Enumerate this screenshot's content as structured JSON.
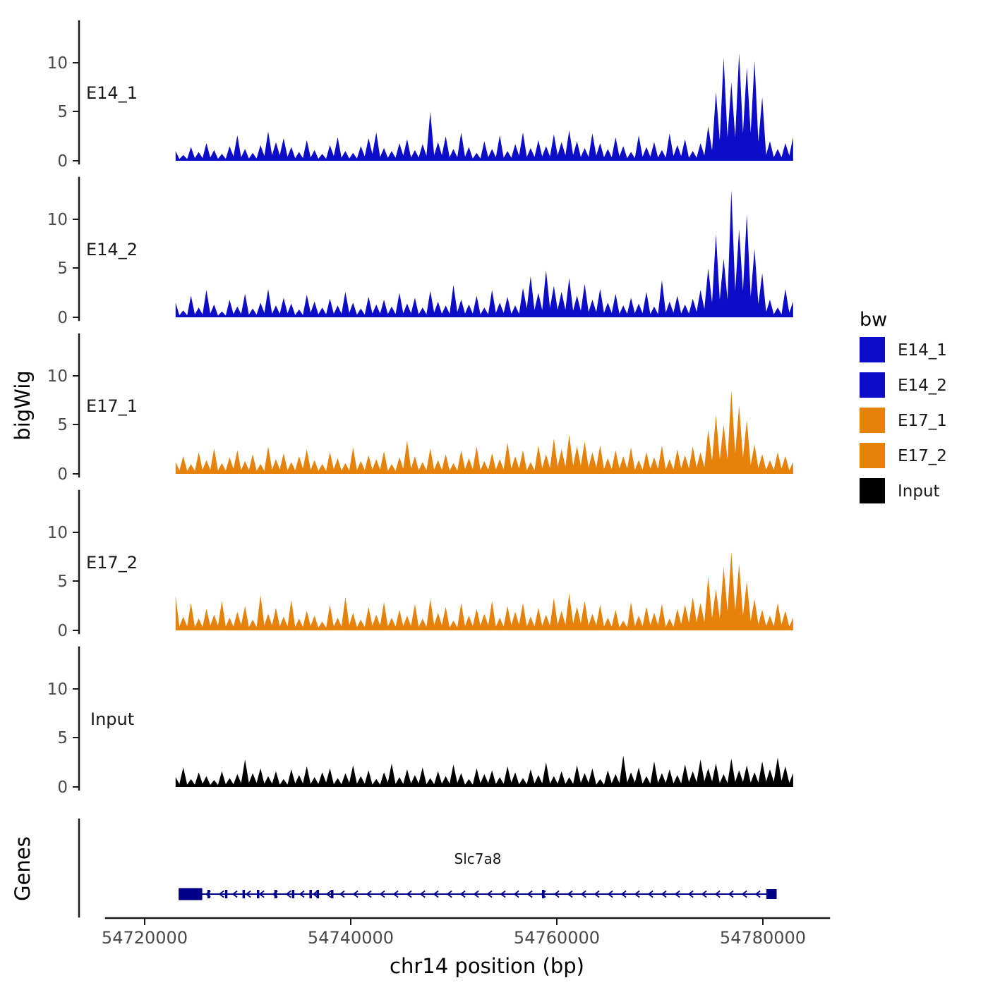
{
  "figure": {
    "y_axis_label": "bigWig",
    "genes_axis_label": "Genes",
    "x_axis_title": "chr14 position (bp)",
    "x_ticks": [
      "54720000",
      "54740000",
      "54760000",
      "54780000"
    ],
    "y_ticks": [
      "0",
      "5",
      "10"
    ]
  },
  "legend": {
    "title": "bw",
    "entries": [
      {
        "label": "E14_1",
        "color": "#0D0DC9"
      },
      {
        "label": "E14_2",
        "color": "#0D0DC9"
      },
      {
        "label": "E17_1",
        "color": "#E6820A"
      },
      {
        "label": "E17_2",
        "color": "#E6820A"
      },
      {
        "label": "Input",
        "color": "#000000"
      }
    ]
  },
  "gene_track": {
    "gene_name": "Slc7a8",
    "strand": "-",
    "chromosome": "chr14",
    "start": 54723300,
    "end": 54781400,
    "color": "#00008B",
    "exons": [
      {
        "start": 54723300,
        "end": 54725600,
        "h": 17
      },
      {
        "start": 54726100,
        "end": 54726300,
        "h": 12
      },
      {
        "start": 54727800,
        "end": 54728000,
        "h": 12
      },
      {
        "start": 54729500,
        "end": 54729700,
        "h": 12
      },
      {
        "start": 54730900,
        "end": 54731100,
        "h": 12
      },
      {
        "start": 54732600,
        "end": 54732800,
        "h": 12
      },
      {
        "start": 54734300,
        "end": 54734500,
        "h": 12
      },
      {
        "start": 54736000,
        "end": 54736200,
        "h": 12
      },
      {
        "start": 54736700,
        "end": 54736900,
        "h": 12
      },
      {
        "start": 54738100,
        "end": 54738300,
        "h": 12
      },
      {
        "start": 54758600,
        "end": 54758800,
        "h": 12
      },
      {
        "start": 54780400,
        "end": 54781400,
        "h": 14
      }
    ]
  },
  "chart_data": {
    "type": "area",
    "title": "",
    "xlabel": "chr14 position (bp)",
    "ylabel": "bigWig",
    "x_start": 54723000,
    "x_step": 750,
    "x_range": [
      54717000,
      54786500
    ],
    "ylim": [
      0,
      13.5
    ],
    "grid": false,
    "legend_position": "right",
    "series": [
      {
        "name": "E14_1",
        "color": "#0D0DC9",
        "values": [
          1.0,
          0.6,
          1.4,
          0.9,
          1.8,
          1.1,
          0.7,
          1.5,
          2.6,
          1.2,
          0.8,
          1.6,
          3.0,
          1.9,
          2.3,
          1.4,
          0.9,
          2.1,
          1.1,
          0.7,
          1.6,
          2.4,
          1.0,
          0.8,
          1.5,
          2.3,
          2.9,
          1.3,
          1.0,
          1.8,
          2.2,
          1.1,
          1.7,
          5.0,
          1.9,
          2.5,
          1.2,
          2.9,
          1.4,
          0.8,
          2.0,
          1.2,
          2.6,
          1.0,
          1.7,
          2.9,
          1.3,
          2.1,
          1.5,
          2.7,
          1.9,
          3.1,
          2.0,
          1.3,
          2.8,
          1.8,
          1.2,
          2.4,
          1.5,
          0.9,
          2.6,
          1.4,
          1.9,
          1.1,
          2.8,
          1.6,
          2.2,
          1.0,
          1.8,
          3.5,
          7.0,
          10.5,
          8.0,
          11.0,
          9.5,
          10.2,
          6.5,
          2.0,
          1.2,
          1.8,
          2.4
        ]
      },
      {
        "name": "E14_2",
        "color": "#0D0DC9",
        "values": [
          1.5,
          0.7,
          2.2,
          1.0,
          2.8,
          1.3,
          0.6,
          1.8,
          1.1,
          2.4,
          0.9,
          1.5,
          2.9,
          1.2,
          2.0,
          1.4,
          0.8,
          2.3,
          1.6,
          1.0,
          1.9,
          1.2,
          2.6,
          1.5,
          0.9,
          2.1,
          1.3,
          1.8,
          1.1,
          2.5,
          1.4,
          2.0,
          1.0,
          2.7,
          1.6,
          1.2,
          3.3,
          1.8,
          1.3,
          2.2,
          1.0,
          2.8,
          1.5,
          2.1,
          1.2,
          3.0,
          4.2,
          2.5,
          4.8,
          3.2,
          2.6,
          4.0,
          2.2,
          3.4,
          1.8,
          2.9,
          1.5,
          2.4,
          1.2,
          2.0,
          1.4,
          2.6,
          1.1,
          3.8,
          1.6,
          2.2,
          1.3,
          1.9,
          2.8,
          5.0,
          8.5,
          6.0,
          13.0,
          9.0,
          10.5,
          7.0,
          4.5,
          1.8,
          1.0,
          2.9,
          1.6
        ]
      },
      {
        "name": "E17_1",
        "color": "#E6820A",
        "values": [
          1.2,
          1.8,
          1.0,
          2.2,
          1.4,
          2.6,
          1.1,
          1.7,
          2.4,
          1.3,
          2.0,
          1.0,
          2.8,
          1.5,
          2.1,
          1.2,
          1.8,
          2.5,
          1.4,
          1.0,
          2.2,
          1.6,
          1.1,
          2.7,
          1.3,
          1.9,
          1.5,
          2.3,
          1.0,
          1.7,
          3.4,
          1.8,
          1.2,
          2.6,
          1.4,
          2.0,
          1.1,
          2.4,
          1.6,
          2.8,
          1.3,
          2.1,
          1.5,
          3.2,
          1.8,
          2.4,
          1.2,
          2.9,
          2.0,
          3.6,
          2.5,
          4.0,
          2.8,
          3.3,
          2.2,
          2.9,
          1.6,
          2.4,
          1.8,
          2.7,
          1.4,
          2.2,
          1.7,
          2.9,
          1.5,
          2.5,
          1.9,
          2.8,
          2.2,
          4.5,
          6.0,
          5.0,
          8.5,
          7.0,
          5.5,
          3.0,
          2.0,
          1.4,
          2.2,
          1.8,
          1.2
        ]
      },
      {
        "name": "E17_2",
        "color": "#E6820A",
        "values": [
          3.5,
          1.4,
          2.8,
          1.2,
          2.2,
          1.6,
          3.0,
          1.3,
          1.9,
          2.5,
          1.1,
          3.6,
          1.7,
          2.3,
          1.4,
          3.1,
          1.2,
          2.0,
          1.5,
          0.9,
          2.6,
          1.3,
          3.4,
          1.8,
          1.1,
          2.4,
          1.6,
          2.9,
          1.3,
          2.1,
          1.5,
          2.7,
          1.2,
          3.2,
          1.8,
          2.4,
          1.0,
          2.8,
          1.5,
          2.2,
          1.7,
          3.0,
          1.3,
          2.5,
          1.9,
          2.8,
          1.4,
          2.3,
          1.6,
          3.3,
          2.0,
          3.8,
          2.4,
          3.0,
          1.7,
          2.6,
          1.3,
          2.1,
          1.0,
          2.9,
          1.5,
          2.4,
          1.8,
          2.7,
          1.2,
          2.2,
          2.6,
          3.4,
          2.8,
          5.5,
          4.2,
          6.5,
          8.0,
          6.8,
          5.0,
          3.2,
          2.1,
          1.5,
          2.8,
          2.0,
          1.3
        ]
      },
      {
        "name": "Input",
        "color": "#000000",
        "values": [
          1.0,
          2.0,
          0.8,
          1.5,
          1.1,
          0.7,
          1.6,
          0.9,
          1.3,
          2.8,
          1.4,
          1.9,
          1.1,
          1.6,
          0.8,
          1.8,
          1.2,
          2.1,
          1.0,
          1.5,
          1.9,
          0.9,
          1.4,
          2.2,
          1.1,
          1.7,
          0.8,
          1.5,
          2.4,
          1.0,
          1.8,
          1.2,
          2.0,
          0.9,
          1.6,
          1.1,
          2.3,
          1.4,
          0.8,
          1.9,
          1.3,
          1.7,
          1.0,
          2.1,
          1.5,
          0.9,
          1.8,
          1.2,
          2.5,
          1.1,
          1.6,
          1.0,
          2.2,
          1.4,
          1.9,
          0.8,
          1.7,
          1.3,
          3.2,
          1.5,
          2.0,
          1.1,
          2.6,
          1.4,
          1.8,
          1.2,
          2.3,
          1.6,
          2.8,
          1.9,
          2.4,
          1.3,
          2.9,
          1.7,
          2.2,
          1.5,
          2.6,
          1.8,
          3.0,
          2.1,
          1.4
        ]
      }
    ]
  }
}
